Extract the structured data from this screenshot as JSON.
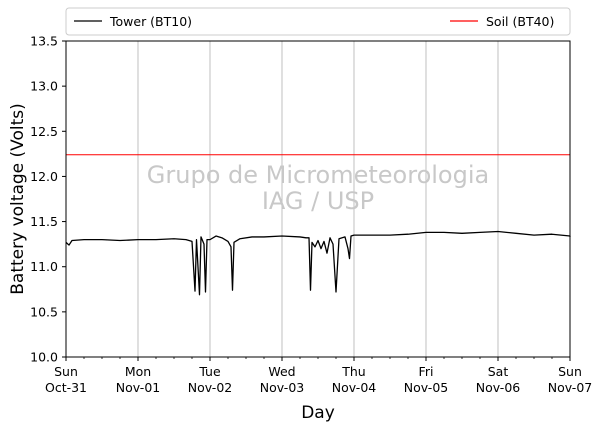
{
  "chart_data": {
    "type": "line",
    "xlabel": "Day",
    "ylabel": "Battery voltage (Volts)",
    "ylim": [
      10.0,
      13.5
    ],
    "xlim": [
      "2021-10-31",
      "2021-11-07"
    ],
    "y_ticks": [
      "10.0",
      "10.5",
      "11.0",
      "11.5",
      "12.0",
      "12.5",
      "13.0",
      "13.5"
    ],
    "x_ticks": [
      {
        "day": "Sun",
        "date": "Oct-31"
      },
      {
        "day": "Mon",
        "date": "Nov-01"
      },
      {
        "day": "Tue",
        "date": "Nov-02"
      },
      {
        "day": "Wed",
        "date": "Nov-03"
      },
      {
        "day": "Thu",
        "date": "Nov-04"
      },
      {
        "day": "Fri",
        "date": "Nov-05"
      },
      {
        "day": "Sat",
        "date": "Nov-06"
      },
      {
        "day": "Sun",
        "date": "Nov-07"
      }
    ],
    "grid": "vertical lines at each day",
    "legend_placement": "top, above plot",
    "watermark": [
      "Grupo de Micrometeorologia",
      "IAG / USP"
    ],
    "series": [
      {
        "name": "Tower (BT10)",
        "color": "#000000",
        "points": [
          [
            "2021-10-31 00:00",
            11.27
          ],
          [
            "2021-10-31 01:00",
            11.24
          ],
          [
            "2021-10-31 02:00",
            11.29
          ],
          [
            "2021-10-31 06:00",
            11.3
          ],
          [
            "2021-10-31 12:00",
            11.3
          ],
          [
            "2021-10-31 18:00",
            11.29
          ],
          [
            "2021-11-01 00:00",
            11.3
          ],
          [
            "2021-11-01 06:00",
            11.3
          ],
          [
            "2021-11-01 12:00",
            11.31
          ],
          [
            "2021-11-01 16:00",
            11.3
          ],
          [
            "2021-11-01 17:00",
            11.29
          ],
          [
            "2021-11-01 18:00",
            11.28
          ],
          [
            "2021-11-01 19:00",
            10.73
          ],
          [
            "2021-11-01 19:30",
            11.3
          ],
          [
            "2021-11-01 20:30",
            10.69
          ],
          [
            "2021-11-01 21:00",
            11.33
          ],
          [
            "2021-11-01 22:00",
            11.25
          ],
          [
            "2021-11-01 22:30",
            10.72
          ],
          [
            "2021-11-01 23:00",
            11.3
          ],
          [
            "2021-11-02 00:00",
            11.3
          ],
          [
            "2021-11-02 02:00",
            11.34
          ],
          [
            "2021-11-02 04:00",
            11.32
          ],
          [
            "2021-11-02 06:00",
            11.28
          ],
          [
            "2021-11-02 07:00",
            11.22
          ],
          [
            "2021-11-02 07:30",
            10.74
          ],
          [
            "2021-11-02 08:00",
            11.27
          ],
          [
            "2021-11-02 10:00",
            11.31
          ],
          [
            "2021-11-02 14:00",
            11.33
          ],
          [
            "2021-11-02 18:00",
            11.33
          ],
          [
            "2021-11-03 00:00",
            11.34
          ],
          [
            "2021-11-03 06:00",
            11.33
          ],
          [
            "2021-11-03 08:00",
            11.32
          ],
          [
            "2021-11-03 09:00",
            11.32
          ],
          [
            "2021-11-03 09:30",
            10.74
          ],
          [
            "2021-11-03 10:00",
            11.27
          ],
          [
            "2021-11-03 11:00",
            11.22
          ],
          [
            "2021-11-03 12:00",
            11.29
          ],
          [
            "2021-11-03 13:00",
            11.2
          ],
          [
            "2021-11-03 14:00",
            11.28
          ],
          [
            "2021-11-03 15:00",
            11.15
          ],
          [
            "2021-11-03 16:00",
            11.32
          ],
          [
            "2021-11-03 17:00",
            11.25
          ],
          [
            "2021-11-03 18:00",
            10.72
          ],
          [
            "2021-11-03 19:00",
            11.31
          ],
          [
            "2021-11-03 21:00",
            11.33
          ],
          [
            "2021-11-03 22:00",
            11.2
          ],
          [
            "2021-11-03 22:30",
            11.09
          ],
          [
            "2021-11-03 23:00",
            11.34
          ],
          [
            "2021-11-04 00:00",
            11.35
          ],
          [
            "2021-11-04 06:00",
            11.35
          ],
          [
            "2021-11-04 12:00",
            11.35
          ],
          [
            "2021-11-04 18:00",
            11.36
          ],
          [
            "2021-11-05 00:00",
            11.38
          ],
          [
            "2021-11-05 06:00",
            11.38
          ],
          [
            "2021-11-05 12:00",
            11.37
          ],
          [
            "2021-11-05 18:00",
            11.38
          ],
          [
            "2021-11-06 00:00",
            11.39
          ],
          [
            "2021-11-06 06:00",
            11.37
          ],
          [
            "2021-11-06 12:00",
            11.35
          ],
          [
            "2021-11-06 18:00",
            11.36
          ],
          [
            "2021-11-07 00:00",
            11.34
          ],
          [
            "2021-11-07 00:00",
            11.33
          ]
        ]
      },
      {
        "name": "Soil (BT40)",
        "color": "#ff0000",
        "points": [
          [
            "2021-10-31 00:00",
            12.24
          ],
          [
            "2021-11-01 00:00",
            12.24
          ],
          [
            "2021-11-02 00:00",
            12.24
          ],
          [
            "2021-11-03 00:00",
            12.24
          ],
          [
            "2021-11-04 00:00",
            12.24
          ],
          [
            "2021-11-05 00:00",
            12.24
          ],
          [
            "2021-11-06 00:00",
            12.24
          ],
          [
            "2021-11-07 00:00",
            12.24
          ]
        ]
      }
    ]
  }
}
